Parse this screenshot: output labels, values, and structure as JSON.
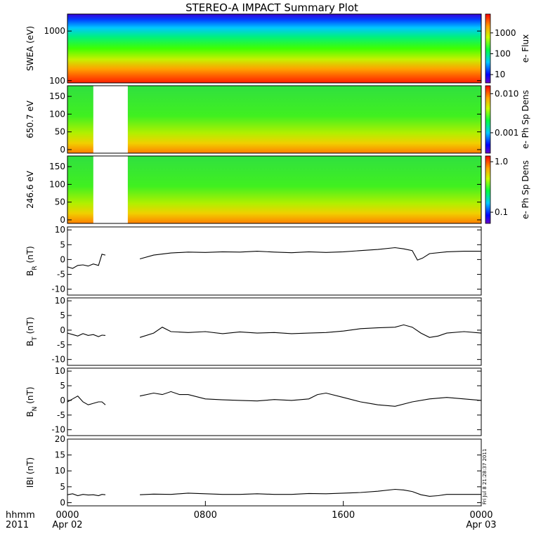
{
  "title": "STEREO-A IMPACT Summary Plot",
  "time_axis": {
    "unit_label": "hhmm",
    "year_label": "2011",
    "ticks": [
      {
        "hour": 0,
        "label": "0000",
        "date": "Apr 02"
      },
      {
        "hour": 8,
        "label": "0800",
        "date": ""
      },
      {
        "hour": 16,
        "label": "1600",
        "date": ""
      },
      {
        "hour": 24,
        "label": "0000",
        "date": "Apr 03"
      }
    ],
    "range_hours": [
      0,
      24
    ]
  },
  "side_stamp": "Fri Jul  8 21:28:37 2011",
  "chart_data": [
    {
      "type": "heatmap",
      "ylabel": "SWEA (eV)",
      "yscale": "log",
      "ylim": [
        90,
        2200
      ],
      "yticks": [
        {
          "v": 100,
          "label": "100"
        },
        {
          "v": 1000,
          "label": "1000"
        }
      ],
      "colorbar": {
        "label": "e- Flux",
        "scale": "log",
        "range": [
          4,
          8000
        ],
        "ticks": [
          {
            "v": 10,
            "label": "10"
          },
          {
            "v": 100,
            "label": "100"
          },
          {
            "v": 1000,
            "label": "1000"
          }
        ]
      },
      "data_gaps_hours": []
    },
    {
      "type": "heatmap",
      "ylabel": "650.7 eV",
      "yscale": "linear",
      "ylim": [
        -10,
        180
      ],
      "yticks": [
        {
          "v": 0,
          "label": "0"
        },
        {
          "v": 50,
          "label": "50"
        },
        {
          "v": 100,
          "label": "100"
        },
        {
          "v": 150,
          "label": "150"
        }
      ],
      "colorbar": {
        "label": "e- Ph Sp Dens",
        "scale": "log",
        "range": [
          0.0003,
          0.016
        ],
        "ticks": [
          {
            "v": 0.001,
            "label": "0.001"
          },
          {
            "v": 0.01,
            "label": "0.010"
          }
        ]
      },
      "data_gaps_hours": [
        [
          1.5,
          3.5
        ]
      ]
    },
    {
      "type": "heatmap",
      "ylabel": "246.6 eV",
      "yscale": "linear",
      "ylim": [
        -10,
        180
      ],
      "yticks": [
        {
          "v": 0,
          "label": "0"
        },
        {
          "v": 50,
          "label": "50"
        },
        {
          "v": 100,
          "label": "100"
        },
        {
          "v": 150,
          "label": "150"
        }
      ],
      "colorbar": {
        "label": "e- Ph Sp Dens",
        "scale": "log",
        "range": [
          0.06,
          1.3
        ],
        "ticks": [
          {
            "v": 0.1,
            "label": "0.1"
          },
          {
            "v": 1.0,
            "label": "1.0"
          }
        ]
      },
      "data_gaps_hours": [
        [
          1.5,
          3.5
        ]
      ]
    },
    {
      "type": "line",
      "ylabel": "B_R (nT)",
      "ylabel_main": "B",
      "ylabel_sub": "R",
      "ylabel_unit": " (nT)",
      "ylim": [
        -12,
        11
      ],
      "yticks": [
        {
          "v": -10,
          "label": "-10"
        },
        {
          "v": -5,
          "label": "-5"
        },
        {
          "v": 0,
          "label": "0"
        },
        {
          "v": 5,
          "label": "5"
        },
        {
          "v": 10,
          "label": "10"
        }
      ],
      "segments": [
        {
          "x": [
            0,
            0.3,
            0.6,
            0.9,
            1.2,
            1.5,
            1.8,
            2.0,
            2.2
          ],
          "y": [
            -2.5,
            -3.0,
            -2.0,
            -1.8,
            -2.2,
            -1.5,
            -2.0,
            1.8,
            1.5
          ]
        },
        {
          "x": [
            4.2,
            5,
            6,
            7,
            8,
            9,
            10,
            11,
            12,
            13,
            14,
            15,
            16,
            17,
            18,
            19,
            19.5,
            20,
            20.3,
            20.6,
            21,
            22,
            23,
            24
          ],
          "y": [
            0.2,
            1.5,
            2.2,
            2.5,
            2.4,
            2.6,
            2.5,
            2.8,
            2.5,
            2.3,
            2.6,
            2.4,
            2.6,
            3.0,
            3.4,
            4.0,
            3.6,
            3.0,
            -0.2,
            0.5,
            2.0,
            2.6,
            2.8,
            2.8
          ]
        }
      ]
    },
    {
      "type": "line",
      "ylabel": "B_T (nT)",
      "ylabel_main": "B",
      "ylabel_sub": "T",
      "ylabel_unit": " (nT)",
      "ylim": [
        -12,
        11
      ],
      "yticks": [
        {
          "v": -10,
          "label": "-10"
        },
        {
          "v": -5,
          "label": "-5"
        },
        {
          "v": 0,
          "label": "0"
        },
        {
          "v": 5,
          "label": "5"
        },
        {
          "v": 10,
          "label": "10"
        }
      ],
      "segments": [
        {
          "x": [
            0,
            0.3,
            0.6,
            0.9,
            1.2,
            1.5,
            1.8,
            2.0,
            2.2
          ],
          "y": [
            -1.0,
            -1.5,
            -2.0,
            -1.2,
            -1.8,
            -1.5,
            -2.2,
            -1.7,
            -1.8
          ]
        },
        {
          "x": [
            4.2,
            5,
            5.5,
            6,
            7,
            8,
            9,
            10,
            11,
            12,
            13,
            14,
            15,
            16,
            17,
            18,
            19,
            19.5,
            20,
            20.5,
            21,
            21.5,
            22,
            23,
            24
          ],
          "y": [
            -2.5,
            -1.0,
            1.0,
            -0.5,
            -0.8,
            -0.5,
            -1.2,
            -0.6,
            -1.0,
            -0.8,
            -1.2,
            -1.0,
            -0.8,
            -0.3,
            0.5,
            0.8,
            1.0,
            1.8,
            1.0,
            -1.0,
            -2.5,
            -2.0,
            -1.0,
            -0.5,
            -1.0
          ]
        }
      ]
    },
    {
      "type": "line",
      "ylabel": "B_N (nT)",
      "ylabel_main": "B",
      "ylabel_sub": "N",
      "ylabel_unit": " (nT)",
      "ylim": [
        -12,
        11
      ],
      "yticks": [
        {
          "v": -10,
          "label": "-10"
        },
        {
          "v": -5,
          "label": "-5"
        },
        {
          "v": 0,
          "label": "0"
        },
        {
          "v": 5,
          "label": "5"
        },
        {
          "v": 10,
          "label": "10"
        }
      ],
      "segments": [
        {
          "x": [
            0,
            0.3,
            0.6,
            0.9,
            1.2,
            1.5,
            1.8,
            2.0,
            2.2
          ],
          "y": [
            -0.5,
            0.5,
            1.5,
            -0.5,
            -1.5,
            -1.0,
            -0.5,
            -0.5,
            -1.5
          ]
        },
        {
          "x": [
            4.2,
            5,
            5.5,
            6,
            6.5,
            7,
            8,
            9,
            10,
            11,
            12,
            13,
            14,
            14.5,
            15,
            16,
            17,
            17.5,
            18,
            19,
            20,
            21,
            22,
            23,
            24
          ],
          "y": [
            1.5,
            2.5,
            2.0,
            3.0,
            2.0,
            2.0,
            0.5,
            0.2,
            0.0,
            -0.2,
            0.3,
            0.0,
            0.5,
            2.0,
            2.5,
            1.0,
            -0.5,
            -1.0,
            -1.5,
            -2.0,
            -0.5,
            0.5,
            1.0,
            0.5,
            0.0
          ]
        }
      ]
    },
    {
      "type": "line",
      "ylabel": "|B| (nT)",
      "ylabel_main": "IBI",
      "ylabel_sub": "",
      "ylabel_unit": " (nT)",
      "ylim": [
        -1,
        20
      ],
      "yticks": [
        {
          "v": 0,
          "label": "0"
        },
        {
          "v": 5,
          "label": "5"
        },
        {
          "v": 10,
          "label": "10"
        },
        {
          "v": 15,
          "label": "15"
        },
        {
          "v": 20,
          "label": "20"
        }
      ],
      "segments": [
        {
          "x": [
            0,
            0.3,
            0.6,
            0.9,
            1.2,
            1.5,
            1.8,
            2.0,
            2.2
          ],
          "y": [
            2.5,
            2.8,
            2.2,
            2.6,
            2.4,
            2.5,
            2.2,
            2.6,
            2.5
          ]
        },
        {
          "x": [
            4.2,
            5,
            6,
            7,
            8,
            9,
            10,
            11,
            12,
            13,
            14,
            15,
            16,
            17,
            18,
            19,
            19.5,
            20,
            20.5,
            21,
            21.5,
            22,
            23,
            24
          ],
          "y": [
            2.5,
            2.7,
            2.6,
            3.0,
            2.8,
            2.6,
            2.6,
            2.8,
            2.6,
            2.6,
            2.9,
            2.8,
            3.0,
            3.2,
            3.6,
            4.2,
            4.0,
            3.5,
            2.5,
            2.0,
            2.2,
            2.6,
            2.6,
            2.6
          ]
        }
      ]
    }
  ]
}
